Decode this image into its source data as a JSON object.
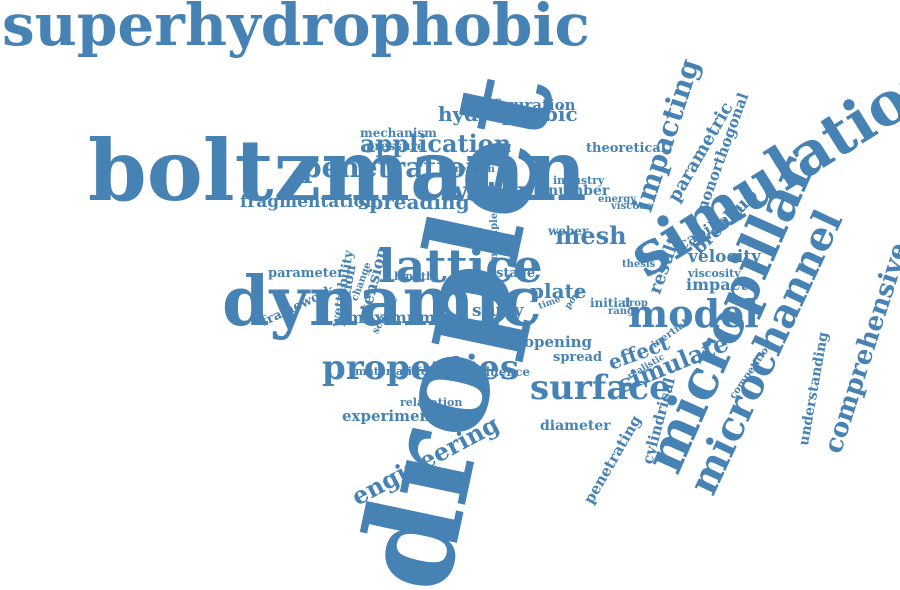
{
  "palette": {
    "word_color": "#4682b4",
    "background": "#ffffff"
  },
  "words": [
    "superhydrophobic",
    "droplet",
    "boltzmann",
    "dynamic",
    "lattice",
    "simulation",
    "micropillar",
    "microchannel",
    "comprehensive",
    "properties",
    "surface",
    "model",
    "penetration",
    "water",
    "engineering",
    "application",
    "mesh",
    "hydrophobic",
    "configuration",
    "impacting",
    "simulate",
    "spreading",
    "fragmentation",
    "breakup",
    "parametric",
    "nonorthogonal",
    "theoretical",
    "mechanism",
    "pressure",
    "direction",
    "industry",
    "number",
    "energy",
    "viscous",
    "multiple",
    "weber",
    "capillary",
    "velocity",
    "result",
    "impact",
    "viscosity",
    "thesis",
    "parameter",
    "length",
    "stage",
    "framework",
    "wettability",
    "fraction",
    "change",
    "tension",
    "science",
    "plate",
    "time",
    "pore",
    "drop",
    "initial",
    "maximum",
    "study",
    "range",
    "opening",
    "spread",
    "effect",
    "inertial",
    "competition",
    "understanding",
    "realistic",
    "material",
    "different",
    "influence",
    "relaxation",
    "experimental",
    "diameter",
    "penetrating",
    "cylindrical"
  ]
}
